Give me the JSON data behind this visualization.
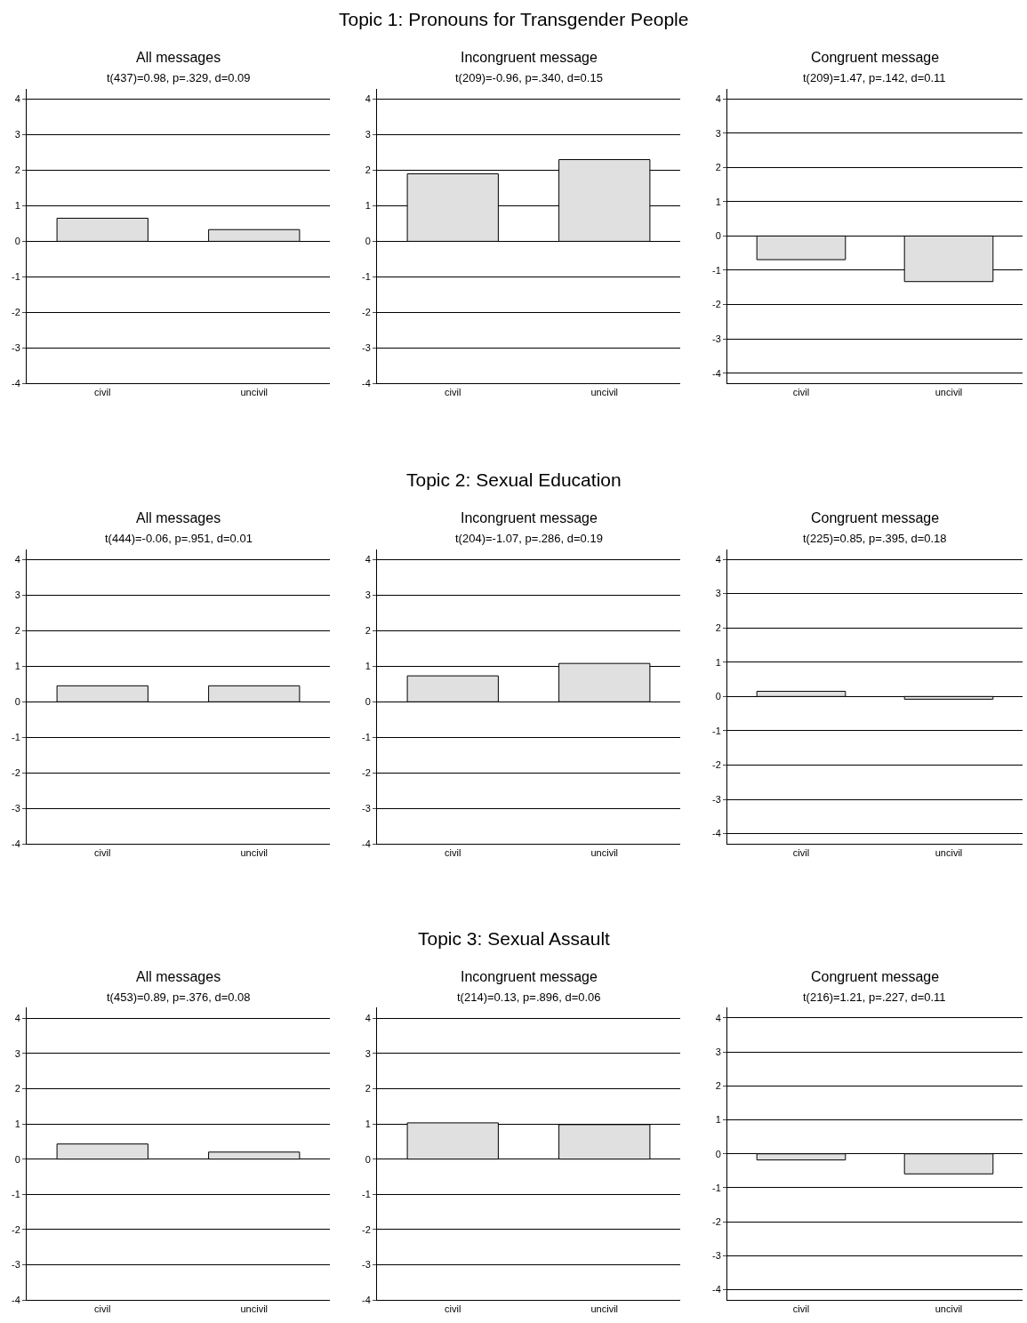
{
  "chart_data": [
    {
      "type": "bar",
      "title": "All messages",
      "subtitle": "t(437)=0.98, p=.329, d=0.09",
      "annotations": [
        "Topic 1: Pronouns for Transgender People"
      ],
      "categories": [
        "civil",
        "uncivil"
      ],
      "values": [
        0.65,
        0.33
      ],
      "color": "#e0e0e0",
      "ylim": [
        -4,
        4.3
      ],
      "yticks": [
        -4,
        -3,
        -2,
        -1,
        0,
        1,
        2,
        3,
        4
      ],
      "grid": "y"
    },
    {
      "type": "bar",
      "title": "Incongruent message",
      "subtitle": "t(209)=-0.96, p=.340, d=0.15",
      "categories": [
        "civil",
        "uncivil"
      ],
      "values": [
        1.9,
        2.3
      ],
      "color": "#e0e0e0",
      "ylim": [
        -4,
        4.3
      ],
      "yticks": [
        -4,
        -3,
        -2,
        -1,
        0,
        1,
        2,
        3,
        4
      ],
      "grid": "y"
    },
    {
      "type": "bar",
      "title": "Congruent message",
      "subtitle": "t(209)=1.47, p=.142, d=0.11",
      "categories": [
        "civil",
        "uncivil"
      ],
      "values": [
        -0.69,
        -1.33
      ],
      "color": "#e0e0e0",
      "ylim": [
        -4.3,
        4.3
      ],
      "yticks": [
        -4,
        -3,
        -2,
        -1,
        0,
        1,
        2,
        3,
        4
      ],
      "grid": "y"
    },
    {
      "type": "bar",
      "title": "All messages",
      "subtitle": "t(444)=-0.06, p=.951, d=0.01",
      "annotations": [
        "Topic 2: Sexual Education"
      ],
      "categories": [
        "civil",
        "uncivil"
      ],
      "values": [
        0.45,
        0.45
      ],
      "color": "#e0e0e0",
      "ylim": [
        -4,
        4.3
      ],
      "yticks": [
        -4,
        -3,
        -2,
        -1,
        0,
        1,
        2,
        3,
        4
      ],
      "grid": "y"
    },
    {
      "type": "bar",
      "title": "Incongruent message",
      "subtitle": "t(204)=-1.07, p=.286, d=0.19",
      "categories": [
        "civil",
        "uncivil"
      ],
      "values": [
        0.73,
        1.08
      ],
      "color": "#e0e0e0",
      "ylim": [
        -4,
        4.3
      ],
      "yticks": [
        -4,
        -3,
        -2,
        -1,
        0,
        1,
        2,
        3,
        4
      ],
      "grid": "y"
    },
    {
      "type": "bar",
      "title": "Congruent message",
      "subtitle": "t(225)=0.85, p=.395, d=0.18",
      "categories": [
        "civil",
        "uncivil"
      ],
      "values": [
        0.15,
        -0.08
      ],
      "color": "#e0e0e0",
      "ylim": [
        -4.3,
        4.3
      ],
      "yticks": [
        -4,
        -3,
        -2,
        -1,
        0,
        1,
        2,
        3,
        4
      ],
      "grid": "y"
    },
    {
      "type": "bar",
      "title": "All messages",
      "subtitle": "t(453)=0.89, p=.376, d=0.08",
      "annotations": [
        "Topic 3: Sexual Assault"
      ],
      "categories": [
        "civil",
        "uncivil"
      ],
      "values": [
        0.43,
        0.2
      ],
      "color": "#e0e0e0",
      "ylim": [
        -4,
        4.3
      ],
      "yticks": [
        -4,
        -3,
        -2,
        -1,
        0,
        1,
        2,
        3,
        4
      ],
      "grid": "y"
    },
    {
      "type": "bar",
      "title": "Incongruent message",
      "subtitle": "t(214)=0.13, p=.896, d=0.06",
      "categories": [
        "civil",
        "uncivil"
      ],
      "values": [
        1.03,
        0.98
      ],
      "color": "#e0e0e0",
      "ylim": [
        -4,
        4.3
      ],
      "yticks": [
        -4,
        -3,
        -2,
        -1,
        0,
        1,
        2,
        3,
        4
      ],
      "grid": "y"
    },
    {
      "type": "bar",
      "title": "Congruent message",
      "subtitle": "t(216)=1.21, p=.227, d=0.11",
      "categories": [
        "civil",
        "uncivil"
      ],
      "values": [
        -0.18,
        -0.59
      ],
      "color": "#e0e0e0",
      "ylim": [
        -4.3,
        4.3
      ],
      "yticks": [
        -4,
        -3,
        -2,
        -1,
        0,
        1,
        2,
        3,
        4
      ],
      "grid": "y"
    }
  ]
}
